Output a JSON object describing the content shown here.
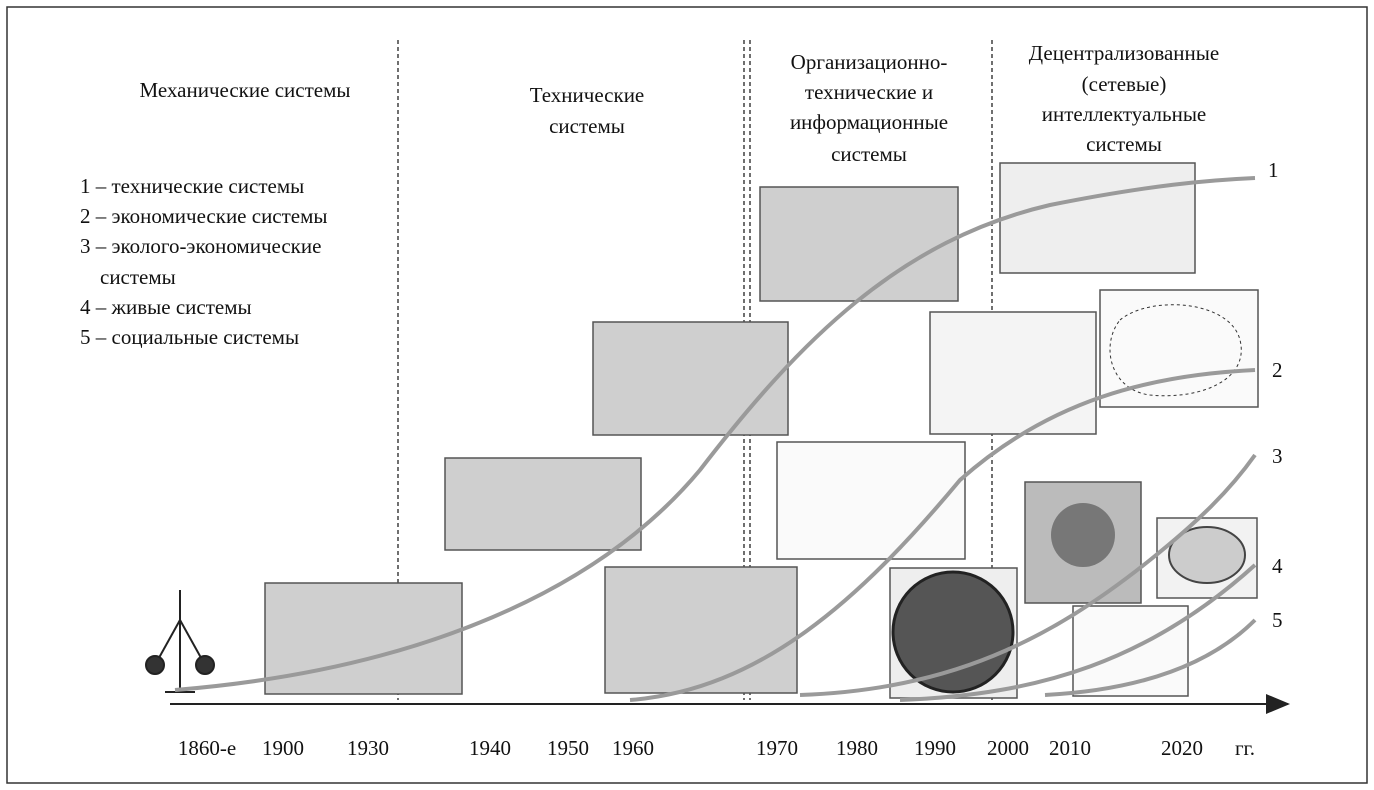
{
  "eras": [
    {
      "lines": [
        "Механические системы"
      ]
    },
    {
      "lines": [
        "Технические",
        "системы"
      ]
    },
    {
      "lines": [
        "Организационно-",
        "технические и",
        "информационные",
        "системы"
      ]
    },
    {
      "lines": [
        "Децентрализованные",
        "(сетевые)",
        "интеллектуальные",
        "системы"
      ]
    }
  ],
  "legend": [
    {
      "lines": [
        "1 – технические системы"
      ]
    },
    {
      "lines": [
        "2 – экономические системы"
      ]
    },
    {
      "lines": [
        "3 – эколого-экономические",
        "системы"
      ]
    },
    {
      "lines": [
        "4 – живые системы"
      ]
    },
    {
      "lines": [
        "5 – социальные системы"
      ]
    }
  ],
  "curves": [
    {
      "label": "1"
    },
    {
      "label": "2"
    },
    {
      "label": "3"
    },
    {
      "label": "4"
    },
    {
      "label": "5"
    }
  ],
  "axis": {
    "labels": [
      "1860-е",
      "1900",
      "1930",
      "1940",
      "1950",
      "1960",
      "1970",
      "1980",
      "1990",
      "2000",
      "2010",
      "2020",
      "гг."
    ]
  }
}
